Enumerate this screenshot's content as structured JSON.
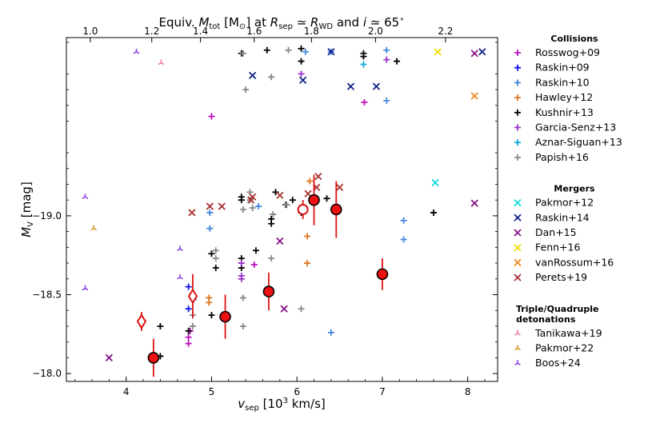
{
  "chart_data": {
    "type": "scatter",
    "title": "Equiv. M_tot [M☉] at R_sep ≃ R_WD and i ≃ 65°",
    "title_parts": {
      "a": "Equiv. ",
      "b": "M",
      "c": "tot",
      "d": " [M",
      "e": "⊙",
      "f": "] at ",
      "g": "R",
      "h": "sep",
      "i": " ≃ ",
      "j": "R",
      "k": "WD",
      "l": " and ",
      "m": "i",
      "n": " ≃ 65",
      "o": "∘"
    },
    "xlabel_parts": {
      "a": "v",
      "b": "sep",
      "c": " [10",
      "d": "3",
      "e": " km/s]"
    },
    "ylabel_parts": {
      "a": "M",
      "b": "V",
      "c": " [mag]"
    },
    "xlim": [
      3.3,
      8.35
    ],
    "ylim": [
      -17.95,
      -20.13
    ],
    "x_ticks": [
      4,
      5,
      6,
      7,
      8
    ],
    "x_tick_labels": [
      "4",
      "5",
      "6",
      "7",
      "8"
    ],
    "y_ticks": [
      -19.0,
      -18.5,
      -18.0
    ],
    "y_tick_labels": [
      "−19.0",
      "−18.5",
      "−18.0"
    ],
    "top_ticks": [
      1.0,
      1.2,
      1.4,
      1.6,
      1.8,
      2.0,
      2.2
    ],
    "top_tick_labels": [
      "1.0",
      "1.2",
      "1.4",
      "1.6",
      "1.8",
      "2.0",
      "2.2"
    ],
    "top_tick_positions_vsep": [
      3.58,
      4.3,
      4.87,
      5.5,
      6.17,
      6.92,
      7.74
    ],
    "legend": {
      "sections": [
        {
          "title": "Collisions",
          "entries": [
            {
              "label": "Rosswog+09",
              "color": "#bb11bb",
              "marker": "plus"
            },
            {
              "label": "Raskin+09",
              "color": "#1111ee",
              "marker": "plus"
            },
            {
              "label": "Raskin+10",
              "color": "#4488dd",
              "marker": "plus"
            },
            {
              "label": "Hawley+12",
              "color": "#dd7722",
              "marker": "plus"
            },
            {
              "label": "Kushnir+13",
              "color": "#000000",
              "marker": "plus"
            },
            {
              "label": "Garcia-Senz+13",
              "color": "#9933cc",
              "marker": "plus"
            },
            {
              "label": "Aznar-Siguan+13",
              "color": "#11aadd",
              "marker": "plus"
            },
            {
              "label": "Papish+16",
              "color": "#888888",
              "marker": "plus"
            }
          ]
        },
        {
          "title": "Mergers",
          "entries": [
            {
              "label": "Pakmor+12",
              "color": "#11dddd",
              "marker": "x"
            },
            {
              "label": "Raskin+14",
              "color": "#112288",
              "marker": "x"
            },
            {
              "label": "Dan+15",
              "color": "#881188",
              "marker": "x"
            },
            {
              "label": "Fenn+16",
              "color": "#eedd00",
              "marker": "x"
            },
            {
              "label": "vanRossum+16",
              "color": "#ee8822",
              "marker": "x"
            },
            {
              "label": "Perets+19",
              "color": "#aa3333",
              "marker": "x"
            }
          ]
        },
        {
          "title": "Triple/Quadruple detonations",
          "title_lines": [
            "Triple/Quadruple",
            "detonations"
          ],
          "entries": [
            {
              "label": "Tanikawa+19",
              "color": "#ee77aa",
              "marker": "tri"
            },
            {
              "label": "Pakmor+22",
              "color": "#dd9922",
              "marker": "tri"
            },
            {
              "label": "Boos+24",
              "color": "#8844dd",
              "marker": "tri"
            }
          ]
        }
      ]
    },
    "series": [
      {
        "name": "Rosswog+09",
        "marker": "plus",
        "color": "#bb11bb",
        "points": [
          [
            4.75,
            -18.27
          ],
          [
            4.73,
            -18.23
          ],
          [
            4.73,
            -18.19
          ],
          [
            5.5,
            -18.69
          ],
          [
            5.0,
            -19.63
          ],
          [
            6.79,
            -19.72
          ]
        ]
      },
      {
        "name": "Raskin+09",
        "marker": "plus",
        "color": "#1111ee",
        "points": [
          [
            4.73,
            -18.55
          ],
          [
            4.73,
            -18.41
          ]
        ]
      },
      {
        "name": "Raskin+10",
        "marker": "plus",
        "color": "#4488dd",
        "points": [
          [
            4.98,
            -19.02
          ],
          [
            4.98,
            -18.92
          ],
          [
            5.55,
            -19.06
          ],
          [
            6.1,
            -20.04
          ],
          [
            6.4,
            -20.04
          ],
          [
            7.05,
            -20.05
          ],
          [
            7.05,
            -19.73
          ],
          [
            7.25,
            -18.97
          ],
          [
            7.25,
            -18.85
          ],
          [
            6.4,
            -18.26
          ]
        ]
      },
      {
        "name": "Hawley+12",
        "marker": "plus",
        "color": "#dd7722",
        "points": [
          [
            4.97,
            -18.48
          ],
          [
            4.97,
            -18.45
          ],
          [
            6.12,
            -18.87
          ],
          [
            6.12,
            -18.7
          ],
          [
            6.15,
            -19.22
          ]
        ]
      },
      {
        "name": "Kushnir+13",
        "marker": "plus",
        "color": "#000000",
        "points": [
          [
            4.4,
            -18.3
          ],
          [
            4.73,
            -18.27
          ],
          [
            4.4,
            -18.11
          ],
          [
            5.0,
            -18.37
          ],
          [
            5.05,
            -18.67
          ],
          [
            5.0,
            -18.76
          ],
          [
            5.35,
            -18.67
          ],
          [
            5.35,
            -18.73
          ],
          [
            5.52,
            -18.78
          ],
          [
            5.7,
            -18.95
          ],
          [
            5.7,
            -18.98
          ],
          [
            5.35,
            -20.03
          ],
          [
            5.35,
            -19.1
          ],
          [
            5.35,
            -19.12
          ],
          [
            5.65,
            -20.05
          ],
          [
            5.95,
            -19.1
          ],
          [
            6.05,
            -20.06
          ],
          [
            6.05,
            -19.98
          ],
          [
            6.05,
            -19.03
          ],
          [
            6.05,
            -19.02
          ],
          [
            6.35,
            -19.11
          ],
          [
            6.78,
            -20.03
          ],
          [
            6.78,
            -20.01
          ],
          [
            7.17,
            -19.98
          ],
          [
            7.6,
            -19.02
          ],
          [
            5.75,
            -19.15
          ],
          [
            5.87,
            -19.07
          ]
        ]
      },
      {
        "name": "Garcia-Senz+13",
        "marker": "plus",
        "color": "#9933cc",
        "points": [
          [
            5.35,
            -18.6
          ],
          [
            5.35,
            -18.7
          ],
          [
            5.35,
            -18.62
          ],
          [
            6.05,
            -19.9
          ],
          [
            7.05,
            -19.99
          ]
        ]
      },
      {
        "name": "Aznar-Siguan+13",
        "marker": "plus",
        "color": "#11aadd",
        "points": [
          [
            6.78,
            -19.96
          ]
        ]
      },
      {
        "name": "Papish+16",
        "marker": "plus",
        "color": "#888888",
        "points": [
          [
            4.78,
            -18.3
          ],
          [
            4.78,
            -18.37
          ],
          [
            4.79,
            -18.47
          ],
          [
            5.05,
            -18.73
          ],
          [
            5.05,
            -18.78
          ],
          [
            5.37,
            -18.3
          ],
          [
            5.37,
            -18.48
          ],
          [
            5.37,
            -19.04
          ],
          [
            5.37,
            -20.03
          ],
          [
            5.4,
            -19.8
          ],
          [
            5.45,
            -19.1
          ],
          [
            5.48,
            -19.05
          ],
          [
            5.45,
            -19.15
          ],
          [
            5.7,
            -18.73
          ],
          [
            5.72,
            -19.01
          ],
          [
            5.7,
            -19.88
          ],
          [
            5.9,
            -20.05
          ],
          [
            5.88,
            -19.07
          ],
          [
            6.05,
            -18.41
          ]
        ]
      },
      {
        "name": "Pakmor+12",
        "marker": "x",
        "color": "#11dddd",
        "points": [
          [
            7.62,
            -19.21
          ]
        ]
      },
      {
        "name": "Raskin+14",
        "marker": "x",
        "color": "#112288",
        "points": [
          [
            5.48,
            -19.89
          ],
          [
            6.07,
            -19.86
          ],
          [
            6.4,
            -20.04
          ],
          [
            6.63,
            -19.82
          ],
          [
            6.93,
            -19.82
          ],
          [
            8.17,
            -20.04
          ]
        ]
      },
      {
        "name": "Dan+15",
        "marker": "x",
        "color": "#881188",
        "points": [
          [
            3.8,
            -18.1
          ],
          [
            5.8,
            -18.84
          ],
          [
            5.85,
            -18.41
          ],
          [
            8.08,
            -20.03
          ],
          [
            8.08,
            -19.08
          ]
        ]
      },
      {
        "name": "Fenn+16",
        "marker": "x",
        "color": "#eedd00",
        "points": [
          [
            7.65,
            -20.04
          ]
        ]
      },
      {
        "name": "vanRossum+16",
        "marker": "x",
        "color": "#ee8822",
        "points": [
          [
            8.08,
            -19.76
          ]
        ]
      },
      {
        "name": "Perets+19",
        "marker": "x",
        "color": "#aa3333",
        "points": [
          [
            4.77,
            -19.02
          ],
          [
            4.98,
            -19.06
          ],
          [
            5.12,
            -19.06
          ],
          [
            5.46,
            -19.1
          ],
          [
            5.48,
            -19.12
          ],
          [
            5.8,
            -19.13
          ],
          [
            6.13,
            -19.14
          ],
          [
            6.23,
            -19.18
          ],
          [
            6.25,
            -19.25
          ],
          [
            6.5,
            -19.18
          ]
        ]
      },
      {
        "name": "Tanikawa+19",
        "marker": "tri",
        "color": "#ee77aa",
        "points": [
          [
            4.41,
            -19.97
          ]
        ]
      },
      {
        "name": "Pakmor+22",
        "marker": "tri",
        "color": "#dd9922",
        "points": [
          [
            3.62,
            -18.92
          ]
        ]
      },
      {
        "name": "Boos+24",
        "marker": "tri",
        "color": "#8844dd",
        "points": [
          [
            3.52,
            -19.12
          ],
          [
            4.12,
            -20.04
          ],
          [
            4.63,
            -18.79
          ],
          [
            4.63,
            -18.61
          ],
          [
            3.52,
            -18.54
          ]
        ]
      }
    ],
    "highlight_points": [
      {
        "x": 6.2,
        "y": -19.1,
        "err": 0.16,
        "shape": "filled-circle"
      },
      {
        "x": 6.46,
        "y": -19.04,
        "err": 0.18,
        "shape": "filled-circle"
      },
      {
        "x": 7.0,
        "y": -18.63,
        "err": 0.1,
        "shape": "filled-circle"
      },
      {
        "x": 5.67,
        "y": -18.52,
        "err": 0.12,
        "shape": "filled-circle"
      },
      {
        "x": 5.16,
        "y": -18.36,
        "err": 0.14,
        "shape": "filled-circle"
      },
      {
        "x": 4.32,
        "y": -18.1,
        "err": 0.12,
        "shape": "filled-circle"
      },
      {
        "x": 6.07,
        "y": -19.04,
        "err": 0.06,
        "shape": "open-circle"
      },
      {
        "x": 4.78,
        "y": -18.49,
        "err": 0.14,
        "shape": "open-diamond"
      },
      {
        "x": 4.18,
        "y": -18.33,
        "err": 0.06,
        "shape": "open-diamond"
      }
    ]
  }
}
